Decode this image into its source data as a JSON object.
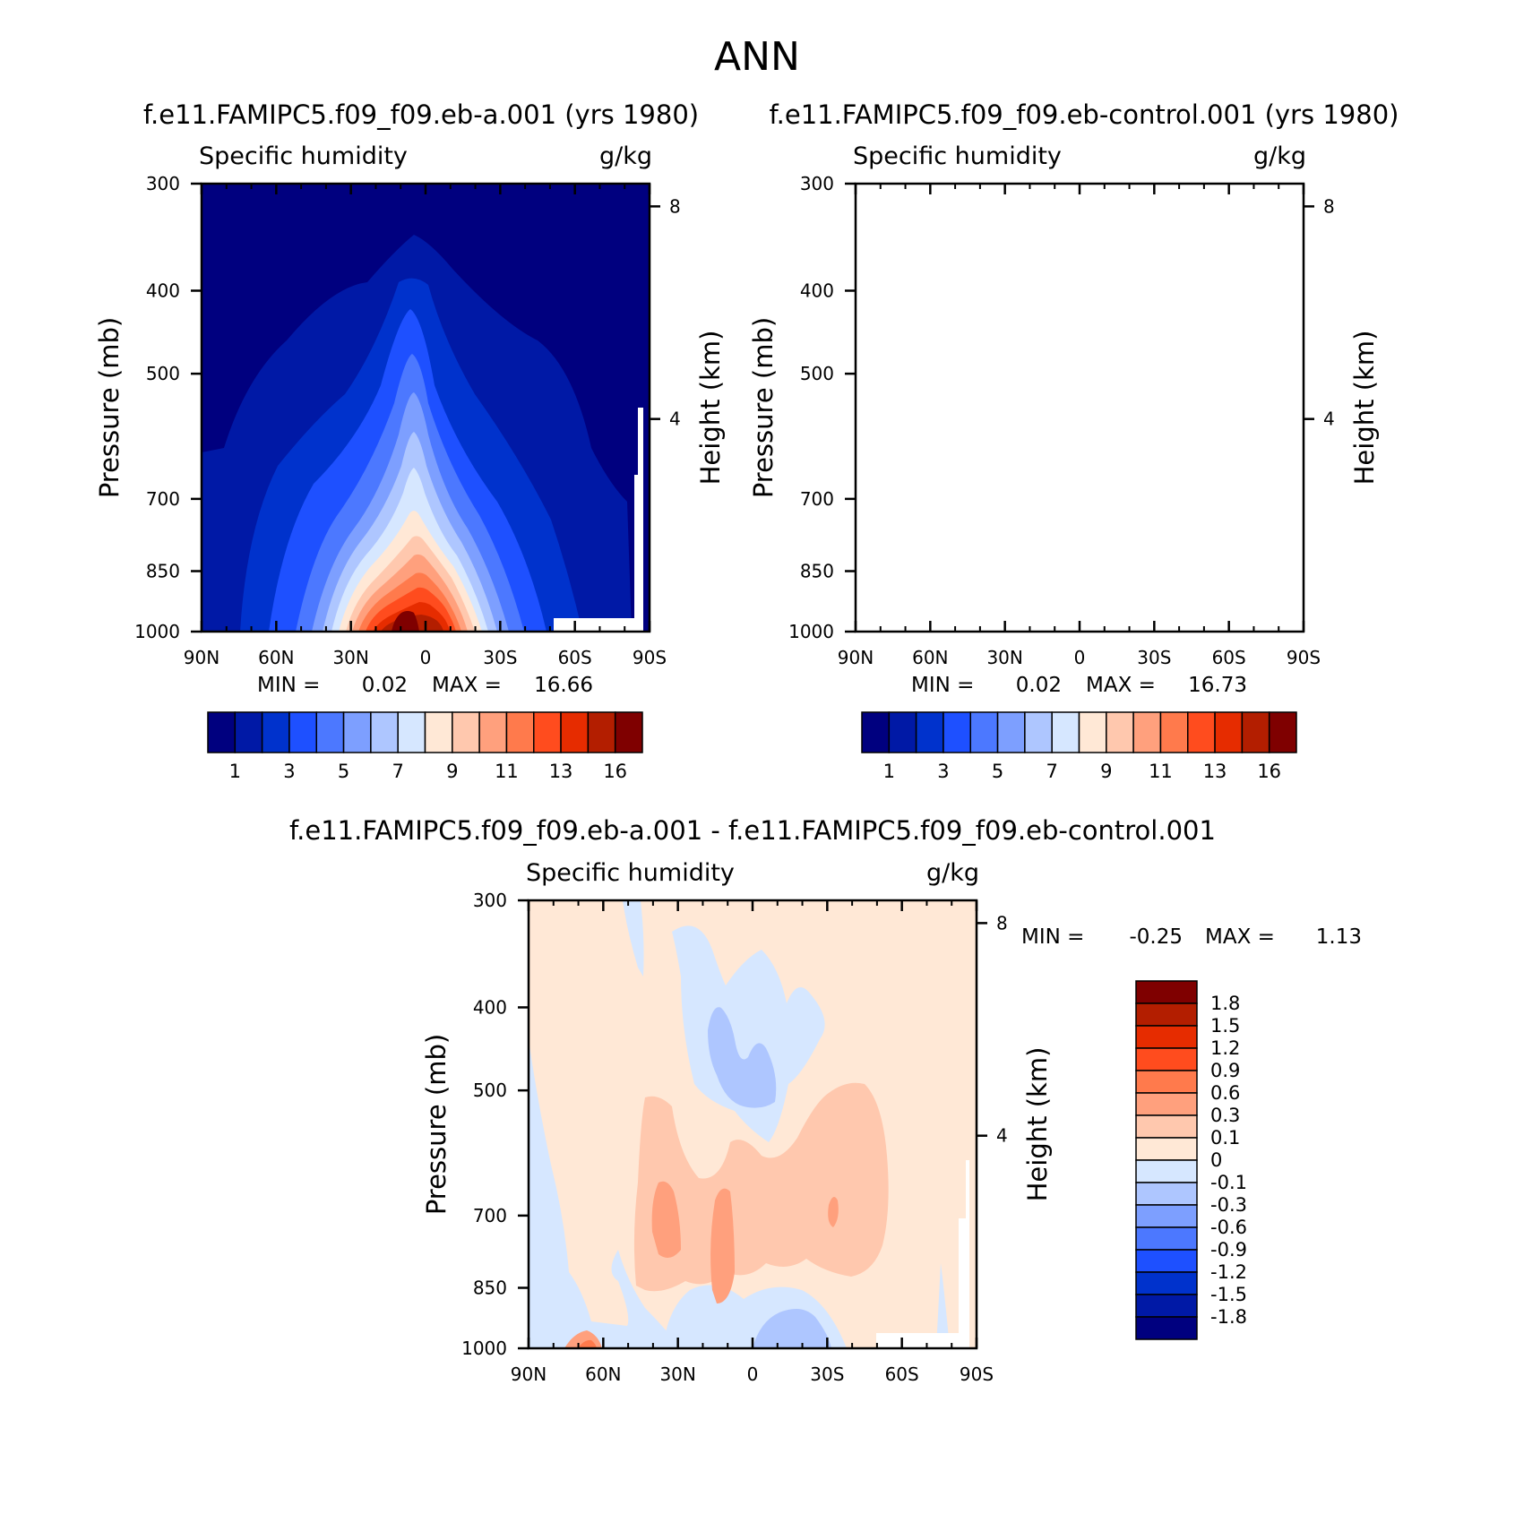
{
  "main_title": "ANN",
  "colors": {
    "abs_scale": [
      "#00007f",
      "#0019a6",
      "#0032cc",
      "#1e50ff",
      "#4c78ff",
      "#7d9fff",
      "#aec6ff",
      "#d6e7ff",
      "#ffe8d6",
      "#ffc8ae",
      "#ffa07d",
      "#ff7a4c",
      "#ff4c1e",
      "#e62c00",
      "#b31e00",
      "#7f0000"
    ],
    "diff_scale": [
      "#00007f",
      "#0019a6",
      "#0032cc",
      "#1e50ff",
      "#4c78ff",
      "#7d9fff",
      "#aec6ff",
      "#d6e7ff",
      "#ffe8d6",
      "#ffc8ae",
      "#ffa07d",
      "#ff7a4c",
      "#ff4c1e",
      "#e62c00",
      "#b31e00",
      "#7f0000"
    ]
  },
  "chart_data": [
    {
      "type": "contour",
      "title": "f.e11.FAMIPC5.f09_f09.eb-a.001 (yrs 1980)",
      "subtitle_left": "Specific humidity",
      "subtitle_right": "g/kg",
      "ylabel": "Pressure (mb)",
      "ylabel_right": "Height (km)",
      "x_ticks": [
        "90N",
        "60N",
        "30N",
        "0",
        "30S",
        "60S",
        "90S"
      ],
      "y_ticks": [
        "300",
        "400",
        "500",
        "700",
        "850",
        "1000"
      ],
      "y_right_ticks": [
        "8",
        "4"
      ],
      "ylim": [
        300,
        1000
      ],
      "stats": {
        "min_label": "MIN =",
        "min": "0.02",
        "max_label": "MAX =",
        "max": "16.66"
      },
      "levels": [
        1,
        2,
        3,
        4,
        5,
        6,
        7,
        8,
        9,
        10,
        11,
        12,
        13,
        14,
        16
      ],
      "colorbar_labels": [
        "1",
        "3",
        "5",
        "7",
        "9",
        "11",
        "13",
        "16"
      ]
    },
    {
      "type": "contour",
      "title": "f.e11.FAMIPC5.f09_f09.eb-control.001 (yrs 1980)",
      "subtitle_left": "Specific humidity",
      "subtitle_right": "g/kg",
      "ylabel": "Pressure (mb)",
      "ylabel_right": "Height (km)",
      "x_ticks": [
        "90N",
        "60N",
        "30N",
        "0",
        "30S",
        "60S",
        "90S"
      ],
      "y_ticks": [
        "300",
        "400",
        "500",
        "700",
        "850",
        "1000"
      ],
      "y_right_ticks": [
        "8",
        "4"
      ],
      "ylim": [
        300,
        1000
      ],
      "stats": {
        "min_label": "MIN =",
        "min": "0.02",
        "max_label": "MAX =",
        "max": "16.73"
      },
      "levels": [
        1,
        2,
        3,
        4,
        5,
        6,
        7,
        8,
        9,
        10,
        11,
        12,
        13,
        14,
        16
      ],
      "colorbar_labels": [
        "1",
        "3",
        "5",
        "7",
        "9",
        "11",
        "13",
        "16"
      ]
    },
    {
      "type": "contour",
      "title": "f.e11.FAMIPC5.f09_f09.eb-a.001 - f.e11.FAMIPC5.f09_f09.eb-control.001",
      "subtitle_left": "Specific humidity",
      "subtitle_right": "g/kg",
      "ylabel": "Pressure (mb)",
      "ylabel_right": "Height (km)",
      "x_ticks": [
        "90N",
        "60N",
        "30N",
        "0",
        "30S",
        "60S",
        "90S"
      ],
      "y_ticks": [
        "300",
        "400",
        "500",
        "700",
        "850",
        "1000"
      ],
      "y_right_ticks": [
        "8",
        "4"
      ],
      "ylim": [
        300,
        1000
      ],
      "stats": {
        "min_label": "MIN =",
        "min": "-0.25",
        "max_label": "MAX =",
        "max": "1.13"
      },
      "levels": [
        -1.8,
        -1.5,
        -1.2,
        -0.9,
        -0.6,
        -0.3,
        -0.1,
        0,
        0.1,
        0.3,
        0.6,
        0.9,
        1.2,
        1.5,
        1.8
      ],
      "colorbar_labels": [
        "1.8",
        "1.5",
        "1.2",
        "0.9",
        "0.6",
        "0.3",
        "0.1",
        "0",
        "-0.1",
        "-0.3",
        "-0.6",
        "-0.9",
        "-1.2",
        "-1.5",
        "-1.8"
      ]
    }
  ]
}
